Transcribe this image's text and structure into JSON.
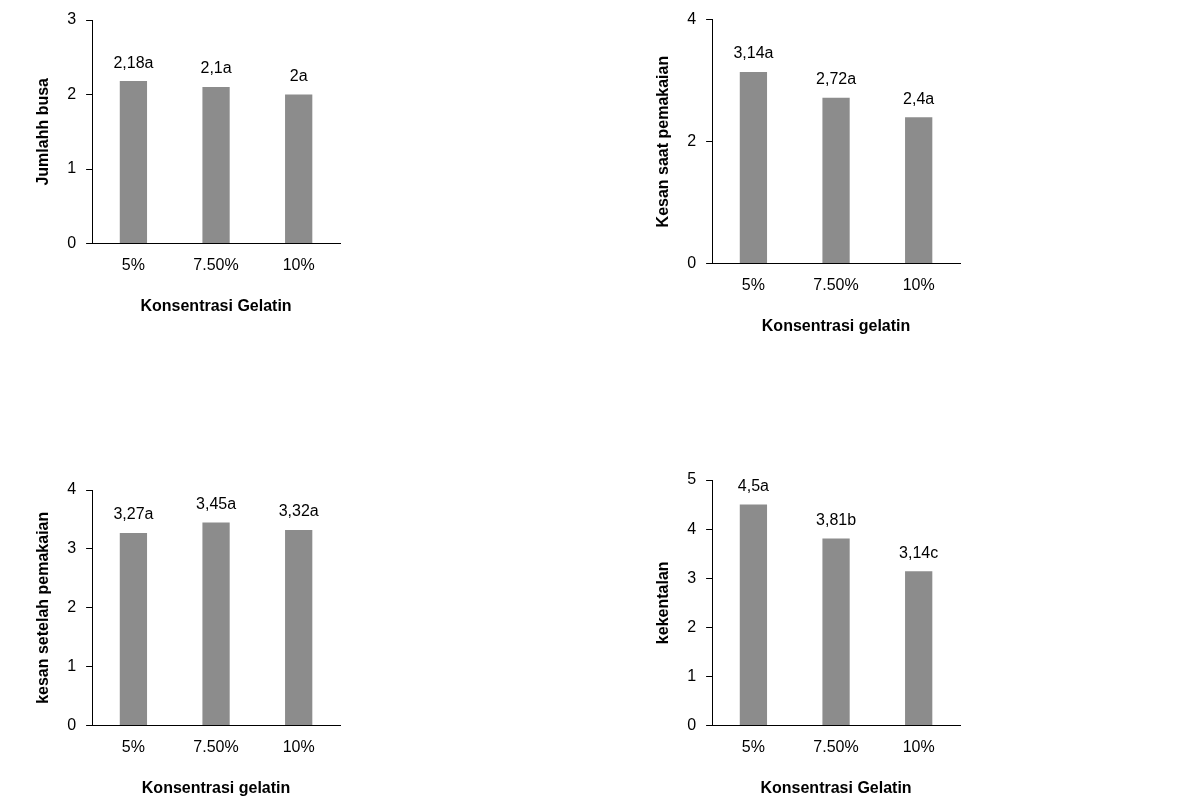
{
  "chart_data": [
    {
      "type": "bar",
      "xlabel": "Konsentrasi Gelatin",
      "ylabel": "Jumlahh busa",
      "categories": [
        "5%",
        "7.50%",
        "10%"
      ],
      "values": [
        2.18,
        2.1,
        2
      ],
      "value_labels": [
        "2,18a",
        "2,1a",
        "2a"
      ],
      "color": "#8c8c8c",
      "ylim": [
        0,
        3
      ],
      "yticks": [
        0,
        1,
        2,
        3
      ],
      "grid": false,
      "legend": false
    },
    {
      "type": "bar",
      "xlabel": "Konsentrasi gelatin",
      "ylabel": "Kesan saat pemakaian",
      "categories": [
        "5%",
        "7.50%",
        "10%"
      ],
      "values": [
        3.14,
        2.72,
        2.4
      ],
      "value_labels": [
        "3,14a",
        "2,72a",
        "2,4a"
      ],
      "color": "#8c8c8c",
      "ylim": [
        0,
        4
      ],
      "yticks": [
        0,
        2,
        4
      ],
      "grid": false,
      "legend": false
    },
    {
      "type": "bar",
      "xlabel": "Konsentrasi gelatin",
      "ylabel": "kesan setelah pemakaian",
      "categories": [
        "5%",
        "7.50%",
        "10%"
      ],
      "values": [
        3.27,
        3.45,
        3.32
      ],
      "value_labels": [
        "3,27a",
        "3,45a",
        "3,32a"
      ],
      "color": "#8c8c8c",
      "ylim": [
        0,
        4
      ],
      "yticks": [
        0,
        1,
        2,
        3,
        4
      ],
      "grid": false,
      "legend": false
    },
    {
      "type": "bar",
      "xlabel": "Konsentrasi Gelatin",
      "ylabel": "kekentalan",
      "categories": [
        "5%",
        "7.50%",
        "10%"
      ],
      "values": [
        4.5,
        3.81,
        3.14
      ],
      "value_labels": [
        "4,5a",
        "3,81b",
        "3,14c"
      ],
      "color": "#8c8c8c",
      "ylim": [
        0,
        5
      ],
      "yticks": [
        0,
        1,
        2,
        3,
        4,
        5
      ],
      "grid": false,
      "legend": false
    }
  ]
}
